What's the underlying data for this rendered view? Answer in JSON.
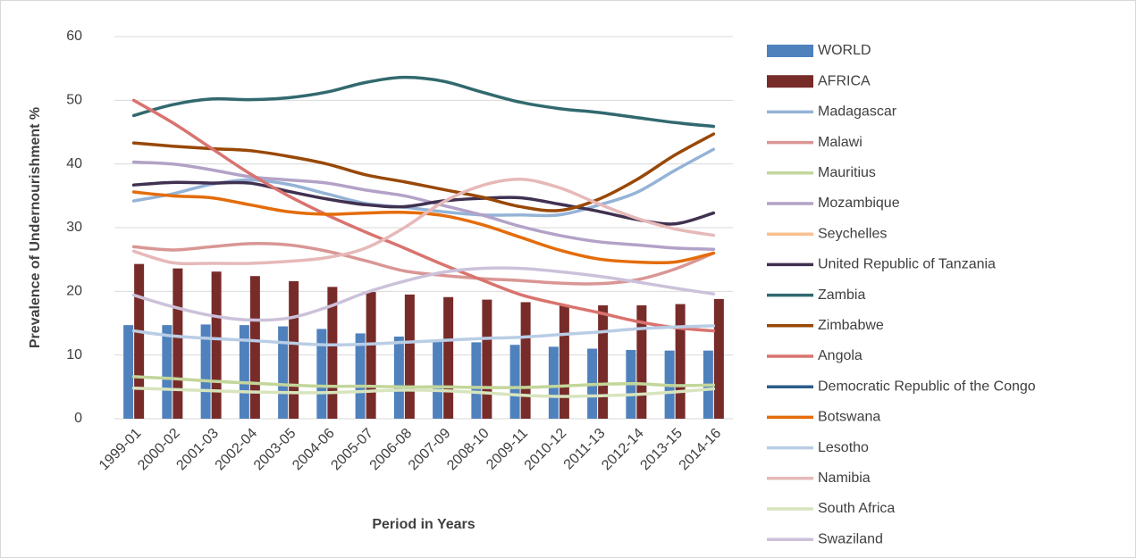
{
  "chart_data": {
    "type": "combo",
    "y_label": "Prevalence of Undernourishment %",
    "x_label": "Period in Years",
    "categories": [
      "1999-01",
      "2000-02",
      "2001-03",
      "2002-04",
      "2003-05",
      "2004-06",
      "2005-07",
      "2006-08",
      "2007-09",
      "2008-10",
      "2009-11",
      "2010-12",
      "2011-13",
      "2012-14",
      "2013-15",
      "2014-16"
    ],
    "ylim": [
      0,
      60
    ],
    "yticks": [
      0,
      10,
      20,
      30,
      40,
      50,
      60
    ],
    "grid": true,
    "legend": "right",
    "series": [
      {
        "name": "WORLD",
        "type": "bar",
        "color": "#4f81bd",
        "values": [
          14.7,
          14.7,
          14.8,
          14.7,
          14.5,
          14.1,
          13.4,
          12.9,
          12.2,
          12.0,
          11.6,
          11.3,
          11.0,
          10.8,
          10.7,
          10.7
        ]
      },
      {
        "name": "AFRICA",
        "type": "bar",
        "color": "#772c2a",
        "values": [
          24.3,
          23.6,
          23.1,
          22.4,
          21.6,
          20.7,
          19.9,
          19.5,
          19.1,
          18.7,
          18.3,
          17.9,
          17.8,
          17.8,
          18.0,
          18.8
        ]
      },
      {
        "name": "Madagascar",
        "type": "line",
        "color": "#95b3d7",
        "values": [
          34.2,
          35.3,
          36.8,
          37.5,
          36.8,
          35.3,
          33.8,
          33.2,
          32.5,
          32.0,
          32.0,
          32.0,
          33.5,
          35.5,
          39.0,
          42.3
        ]
      },
      {
        "name": "Malawi",
        "type": "line",
        "color": "#d99694",
        "values": [
          27.0,
          26.5,
          27.0,
          27.5,
          27.3,
          26.3,
          24.8,
          23.2,
          22.5,
          22.0,
          21.7,
          21.3,
          21.2,
          21.8,
          23.5,
          26.0
        ]
      },
      {
        "name": "Mauritius",
        "type": "line",
        "color": "#c3d69b",
        "values": [
          6.6,
          6.3,
          5.9,
          5.6,
          5.3,
          5.1,
          5.1,
          5.0,
          5.0,
          4.9,
          4.9,
          5.1,
          5.4,
          5.5,
          5.2,
          5.3
        ]
      },
      {
        "name": "Mozambique",
        "type": "line",
        "color": "#b3a2c7",
        "values": [
          40.3,
          40.0,
          39.1,
          38.0,
          37.5,
          37.0,
          35.9,
          35.0,
          33.5,
          32.0,
          30.2,
          28.8,
          27.8,
          27.3,
          26.8,
          26.6
        ]
      },
      {
        "name": "Seychelles",
        "type": "line",
        "color": "#fac090",
        "values": [
          null,
          null,
          null,
          null,
          null,
          null,
          null,
          null,
          null,
          null,
          null,
          null,
          null,
          null,
          null,
          null
        ]
      },
      {
        "name": "United Republic of Tanzania",
        "type": "line",
        "color": "#403151",
        "values": [
          36.7,
          37.1,
          37.0,
          37.0,
          35.7,
          34.5,
          33.6,
          33.3,
          34.2,
          34.6,
          34.7,
          33.7,
          32.6,
          31.3,
          30.6,
          32.3
        ]
      },
      {
        "name": "Zambia",
        "type": "line",
        "color": "#31696e",
        "values": [
          47.6,
          49.3,
          50.2,
          50.1,
          50.4,
          51.3,
          52.8,
          53.6,
          53.0,
          51.3,
          49.7,
          48.7,
          48.1,
          47.3,
          46.5,
          45.9
        ]
      },
      {
        "name": "Zimbabwe",
        "type": "line",
        "color": "#984807",
        "values": [
          43.3,
          42.8,
          42.4,
          42.1,
          41.2,
          40.0,
          38.3,
          37.2,
          36.0,
          34.8,
          33.3,
          32.7,
          34.4,
          37.5,
          41.4,
          44.7
        ]
      },
      {
        "name": "Angola",
        "type": "line",
        "color": "#d9736e",
        "values": [
          50.0,
          46.5,
          42.5,
          38.5,
          35.0,
          32.0,
          29.3,
          26.8,
          24.2,
          21.8,
          19.5,
          18.0,
          16.7,
          15.3,
          14.3,
          13.8
        ]
      },
      {
        "name": "Democratic Republic of the Congo",
        "type": "line",
        "color": "#2c5d8a",
        "values": [
          null,
          null,
          null,
          null,
          null,
          null,
          null,
          null,
          null,
          null,
          null,
          null,
          null,
          null,
          null,
          null
        ]
      },
      {
        "name": "Botswana",
        "type": "line",
        "color": "#e46c0a",
        "values": [
          35.6,
          35.0,
          34.7,
          33.6,
          32.5,
          32.1,
          32.3,
          32.4,
          31.9,
          30.5,
          28.5,
          26.5,
          25.1,
          24.6,
          24.6,
          26.0
        ]
      },
      {
        "name": "Lesotho",
        "type": "line",
        "color": "#b9cde5",
        "values": [
          13.8,
          13.0,
          12.6,
          12.3,
          11.9,
          11.6,
          11.7,
          12.0,
          12.3,
          12.6,
          12.8,
          13.2,
          13.6,
          14.1,
          14.4,
          14.6
        ]
      },
      {
        "name": "Namibia",
        "type": "line",
        "color": "#e6b9b8",
        "values": [
          26.3,
          24.5,
          24.4,
          24.4,
          24.7,
          25.3,
          26.8,
          30.0,
          34.0,
          36.6,
          37.6,
          36.3,
          33.8,
          31.5,
          29.8,
          28.8
        ]
      },
      {
        "name": "South Africa",
        "type": "line",
        "color": "#d7e4bd",
        "values": [
          4.8,
          4.6,
          4.4,
          4.2,
          4.1,
          4.1,
          4.3,
          4.5,
          4.4,
          4.1,
          3.7,
          3.5,
          3.6,
          3.8,
          4.2,
          4.7
        ]
      },
      {
        "name": "Swaziland",
        "type": "line",
        "color": "#ccc1da",
        "values": [
          19.4,
          17.6,
          16.2,
          15.5,
          15.8,
          17.5,
          19.8,
          21.6,
          23.0,
          23.6,
          23.6,
          23.1,
          22.4,
          21.5,
          20.5,
          19.6
        ]
      }
    ]
  }
}
